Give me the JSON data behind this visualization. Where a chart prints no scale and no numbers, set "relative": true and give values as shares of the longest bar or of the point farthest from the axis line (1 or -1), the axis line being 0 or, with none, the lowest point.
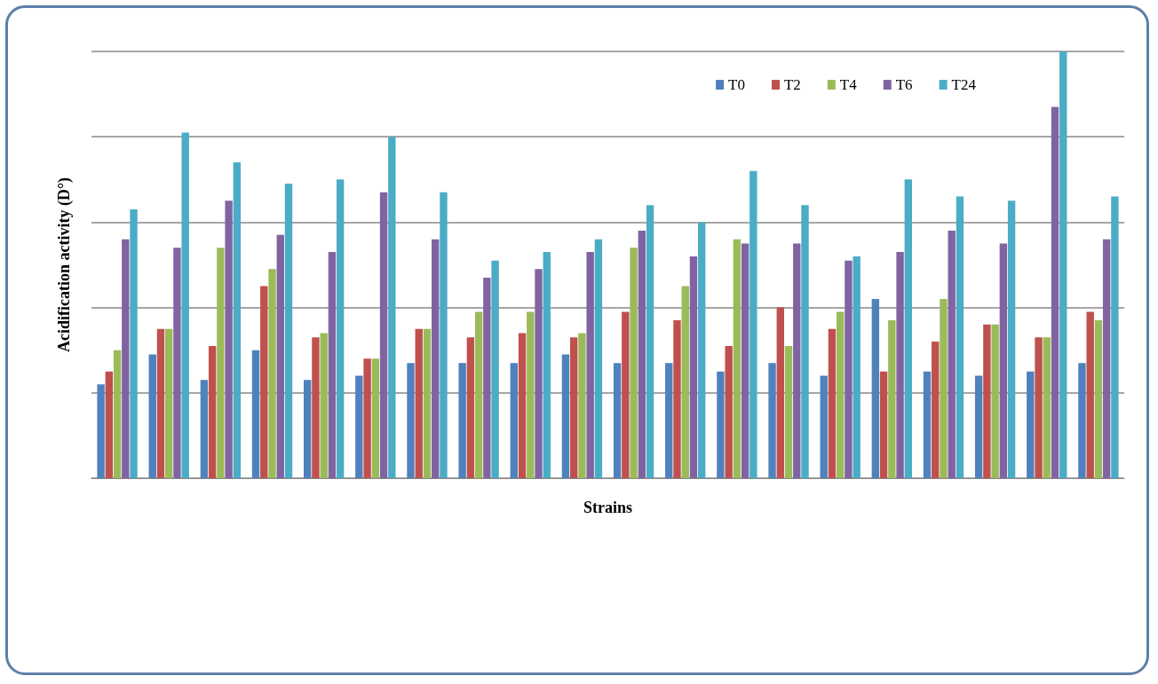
{
  "chart_data": {
    "type": "bar",
    "relative": true,
    "xlabel": "Strains",
    "ylabel": "Acidification activity (D°)",
    "categories": [
      null,
      null,
      null,
      null,
      null,
      null,
      null,
      null,
      null,
      null,
      null,
      null,
      null,
      null,
      null,
      null,
      null,
      null,
      null,
      null
    ],
    "series": [
      {
        "name": "T0",
        "color": "#4f81bd",
        "values": [
          0.22,
          0.29,
          0.23,
          0.3,
          0.23,
          0.24,
          0.27,
          0.27,
          0.27,
          0.29,
          0.27,
          0.27,
          0.25,
          0.27,
          0.24,
          0.42,
          0.25,
          0.24,
          0.25,
          0.27
        ]
      },
      {
        "name": "T2",
        "color": "#c0504d",
        "values": [
          0.25,
          0.35,
          0.31,
          0.45,
          0.33,
          0.28,
          0.35,
          0.33,
          0.34,
          0.33,
          0.39,
          0.37,
          0.31,
          0.4,
          0.35,
          0.25,
          0.32,
          0.36,
          0.33,
          0.39
        ]
      },
      {
        "name": "T4",
        "color": "#9bbb59",
        "values": [
          0.3,
          0.35,
          0.54,
          0.49,
          0.34,
          0.28,
          0.35,
          0.39,
          0.39,
          0.34,
          0.54,
          0.45,
          0.56,
          0.31,
          0.39,
          0.37,
          0.42,
          0.36,
          0.33,
          0.37
        ]
      },
      {
        "name": "T6",
        "color": "#8064a2",
        "values": [
          0.56,
          0.54,
          0.65,
          0.57,
          0.53,
          0.67,
          0.56,
          0.47,
          0.49,
          0.53,
          0.58,
          0.52,
          0.55,
          0.55,
          0.51,
          0.53,
          0.58,
          0.55,
          0.87,
          0.56
        ]
      },
      {
        "name": "T24",
        "color": "#4bacc6",
        "values": [
          0.63,
          0.81,
          0.74,
          0.69,
          0.7,
          0.8,
          0.67,
          0.51,
          0.53,
          0.56,
          0.64,
          0.6,
          0.72,
          0.64,
          0.52,
          0.7,
          0.66,
          0.65,
          1,
          0.66
        ]
      }
    ],
    "grid": true,
    "legend": "top right"
  }
}
